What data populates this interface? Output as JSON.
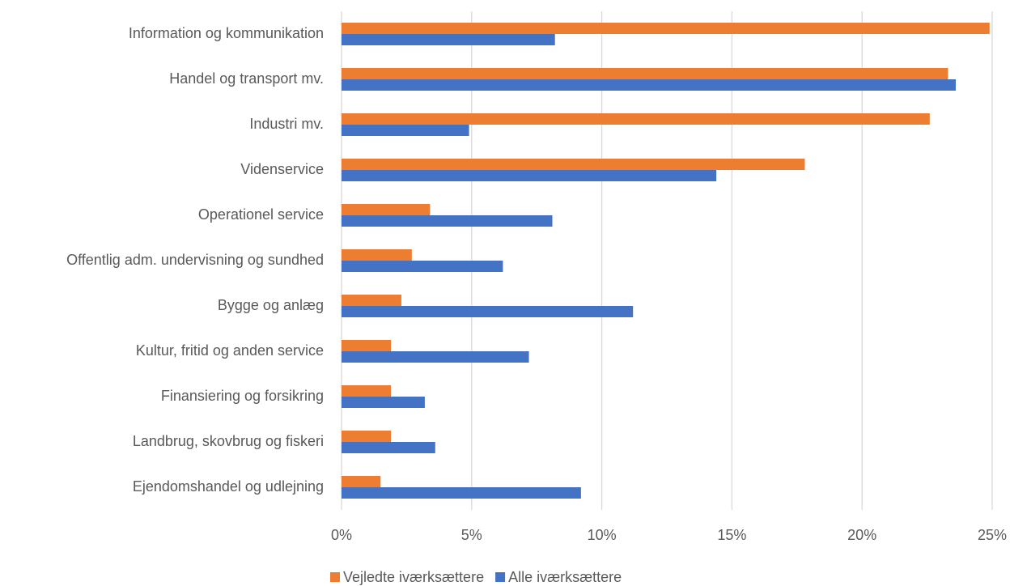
{
  "chart_data": {
    "type": "barh",
    "categories": [
      "Information og kommunikation",
      "Handel og transport mv.",
      "Industri mv.",
      "Videnservice",
      "Operationel service",
      "Offentlig adm. undervisning og sundhed",
      "Bygge og anlæg",
      "Kultur, fritid og anden service",
      "Finansiering og forsikring",
      "Landbrug, skovbrug og fiskeri",
      "Ejendomshandel og udlejning"
    ],
    "series": [
      {
        "name": "Vejledte iværksættere",
        "color": "#ed7d31",
        "values": [
          24.9,
          23.3,
          22.6,
          17.8,
          3.4,
          2.7,
          2.3,
          1.9,
          1.9,
          1.9,
          1.5
        ]
      },
      {
        "name": "Alle iværksættere",
        "color": "#4472c4",
        "values": [
          8.2,
          23.6,
          4.9,
          14.4,
          8.1,
          6.2,
          11.2,
          7.2,
          3.2,
          3.6,
          9.2
        ]
      }
    ],
    "xlim": [
      0,
      25
    ],
    "xticks": [
      {
        "value": 0,
        "label": "0%"
      },
      {
        "value": 5,
        "label": "5%"
      },
      {
        "value": 10,
        "label": "10%"
      },
      {
        "value": 15,
        "label": "15%"
      },
      {
        "value": 20,
        "label": "20%"
      },
      {
        "value": 25,
        "label": "25%"
      }
    ],
    "grid": true,
    "legend": "bottom"
  }
}
